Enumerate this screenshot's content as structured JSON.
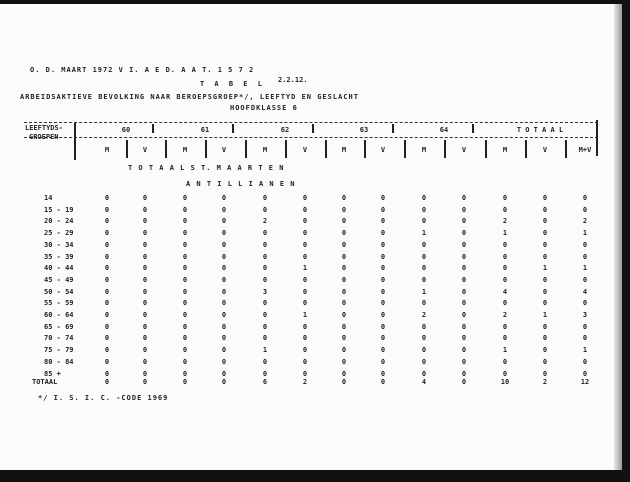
{
  "header_line": "O. D. MAART 1972 V I. A E D. A A T. 1 5 7 2",
  "table_label": "T A B E L",
  "table_number": "2.2.12.",
  "title": "ARBEIDSAKTIEVE BEVOLKING NAAR BEROEPSGROEP*/, LEEFTYD EN GESLACHT",
  "subtitle": "HOOFDKLASSE 6",
  "row_header": [
    "LEEFTYDS-",
    "GROEPEN"
  ],
  "groups": [
    "60",
    "61",
    "62",
    "63",
    "64",
    "T O T A A L"
  ],
  "subcolumns": [
    "M",
    "V",
    "M",
    "V",
    "M",
    "V",
    "M",
    "V",
    "M",
    "V",
    "M",
    "V",
    "M+V"
  ],
  "section_1": "T O T A A L   S T. M A A R T E N",
  "section_2": "A N T I L L I A N E N",
  "rows": [
    {
      "age": "14",
      "values": [
        "0",
        "0",
        "0",
        "0",
        "0",
        "0",
        "0",
        "0",
        "0",
        "0",
        "0",
        "0",
        "0"
      ]
    },
    {
      "age": "15 - 19",
      "values": [
        "0",
        "0",
        "0",
        "0",
        "0",
        "0",
        "0",
        "0",
        "0",
        "0",
        "0",
        "0",
        "0"
      ]
    },
    {
      "age": "20 - 24",
      "values": [
        "0",
        "0",
        "0",
        "0",
        "2",
        "0",
        "0",
        "0",
        "0",
        "0",
        "2",
        "0",
        "2"
      ]
    },
    {
      "age": "25 - 29",
      "values": [
        "0",
        "0",
        "0",
        "0",
        "0",
        "0",
        "0",
        "0",
        "1",
        "0",
        "1",
        "0",
        "1"
      ]
    },
    {
      "age": "30 - 34",
      "values": [
        "0",
        "0",
        "0",
        "0",
        "0",
        "0",
        "0",
        "0",
        "0",
        "0",
        "0",
        "0",
        "0"
      ]
    },
    {
      "age": "35 - 39",
      "values": [
        "0",
        "0",
        "0",
        "0",
        "0",
        "0",
        "0",
        "0",
        "0",
        "0",
        "0",
        "0",
        "0"
      ]
    },
    {
      "age": "40 - 44",
      "values": [
        "0",
        "0",
        "0",
        "0",
        "0",
        "1",
        "0",
        "0",
        "0",
        "0",
        "0",
        "1",
        "1"
      ]
    },
    {
      "age": "45 - 49",
      "values": [
        "0",
        "0",
        "0",
        "0",
        "0",
        "0",
        "0",
        "0",
        "0",
        "0",
        "0",
        "0",
        "0"
      ]
    },
    {
      "age": "50 - 54",
      "values": [
        "0",
        "0",
        "0",
        "0",
        "3",
        "0",
        "0",
        "0",
        "1",
        "0",
        "4",
        "0",
        "4"
      ]
    },
    {
      "age": "55 - 59",
      "values": [
        "0",
        "0",
        "0",
        "0",
        "0",
        "0",
        "0",
        "0",
        "0",
        "0",
        "0",
        "0",
        "0"
      ]
    },
    {
      "age": "60 - 64",
      "values": [
        "0",
        "0",
        "0",
        "0",
        "0",
        "1",
        "0",
        "0",
        "2",
        "0",
        "2",
        "1",
        "3"
      ]
    },
    {
      "age": "65 - 69",
      "values": [
        "0",
        "0",
        "0",
        "0",
        "0",
        "0",
        "0",
        "0",
        "0",
        "0",
        "0",
        "0",
        "0"
      ]
    },
    {
      "age": "70 - 74",
      "values": [
        "0",
        "0",
        "0",
        "0",
        "0",
        "0",
        "0",
        "0",
        "0",
        "0",
        "0",
        "0",
        "0"
      ]
    },
    {
      "age": "75 - 79",
      "values": [
        "0",
        "0",
        "0",
        "0",
        "1",
        "0",
        "0",
        "0",
        "0",
        "0",
        "1",
        "0",
        "1"
      ]
    },
    {
      "age": "80 - 84",
      "values": [
        "0",
        "0",
        "0",
        "0",
        "0",
        "0",
        "0",
        "0",
        "0",
        "0",
        "0",
        "0",
        "0"
      ]
    },
    {
      "age": "85 +",
      "values": [
        "0",
        "0",
        "0",
        "0",
        "0",
        "0",
        "0",
        "0",
        "0",
        "0",
        "0",
        "0",
        "0"
      ]
    }
  ],
  "total": {
    "age": "TOTAAL",
    "values": [
      "0",
      "0",
      "0",
      "0",
      "6",
      "2",
      "0",
      "0",
      "4",
      "0",
      "10",
      "2",
      "12"
    ]
  },
  "footnote": "*/ I. S. I. C. -CODE 1969"
}
